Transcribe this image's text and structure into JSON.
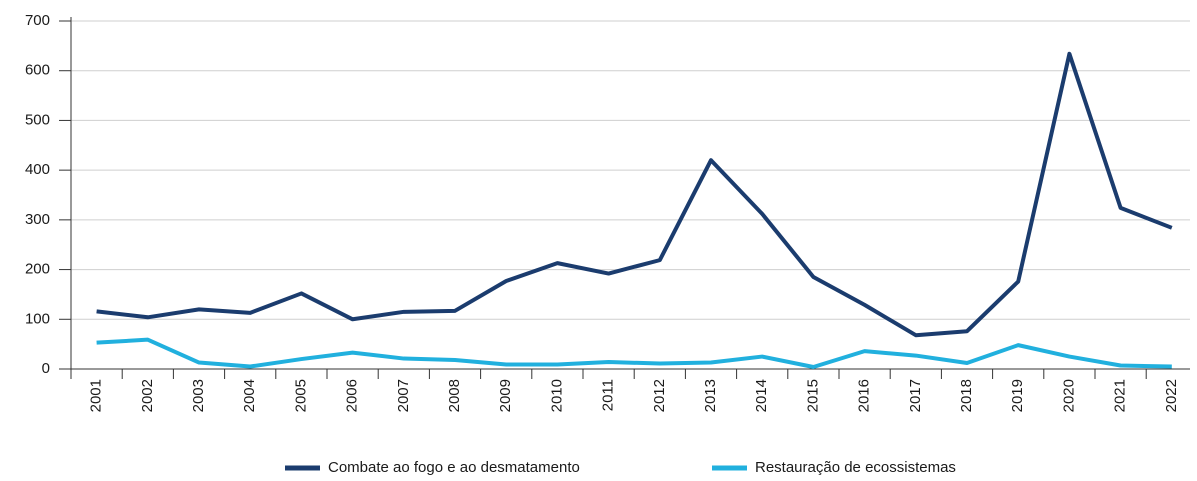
{
  "chart_data": {
    "type": "line",
    "categories": [
      "2001",
      "2002",
      "2003",
      "2004",
      "2005",
      "2006",
      "2007",
      "2008",
      "2009",
      "2010",
      "2011",
      "2012",
      "2013",
      "2014",
      "2015",
      "2016",
      "2017",
      "2018",
      "2019",
      "2020",
      "2021",
      "2022"
    ],
    "series": [
      {
        "name": "Combate ao fogo e ao desmatamento",
        "color": "#1b3c6e",
        "values": [
          116,
          104,
          120,
          113,
          152,
          100,
          115,
          117,
          177,
          213,
          192,
          219,
          420,
          312,
          185,
          129,
          68,
          76,
          176,
          634,
          324,
          284
        ]
      },
      {
        "name": "Restauração de ecossistemas",
        "color": "#21b0de",
        "values": [
          53,
          59,
          13,
          5,
          20,
          33,
          21,
          18,
          9,
          9,
          14,
          11,
          13,
          25,
          4,
          36,
          27,
          12,
          48,
          25,
          7,
          5
        ]
      }
    ],
    "ylim": [
      0,
      700
    ],
    "yticks": [
      0,
      100,
      200,
      300,
      400,
      500,
      600,
      700
    ],
    "grid": true,
    "legend": "bottom"
  }
}
